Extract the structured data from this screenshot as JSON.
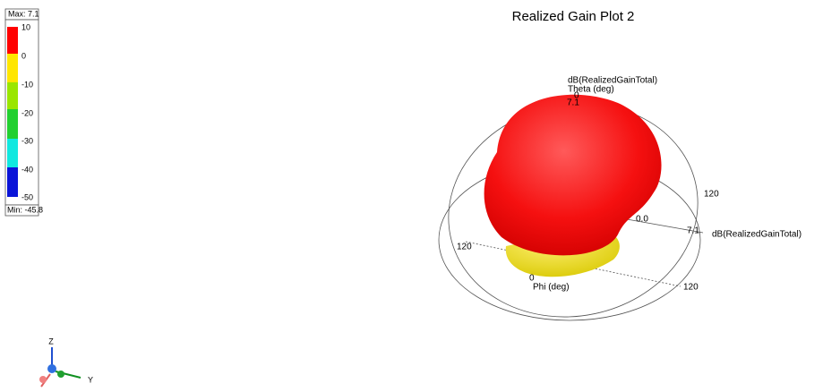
{
  "title": "Realized Gain Plot 2",
  "legend": {
    "max_label": "Max: 7.1",
    "min_label": "Min: -45.8",
    "ticks": [
      "10",
      "0",
      "-10",
      "-20",
      "-30",
      "-40",
      "-50"
    ]
  },
  "annotations": {
    "theta_quantity": "dB(RealizedGainTotal)",
    "theta_axis": "Theta (deg)",
    "theta_top_value": "7.1",
    "theta_zero": "0",
    "right_120": "120",
    "center_value": "0.0",
    "radial_max": "7.1",
    "radial_quantity": "dB(RealizedGainTotal)",
    "left_120": "120",
    "phi_zero": "0",
    "phi_axis": "Phi (deg)",
    "bottom_120": "120"
  },
  "triad": {
    "z": "Z",
    "y": "Y"
  }
}
